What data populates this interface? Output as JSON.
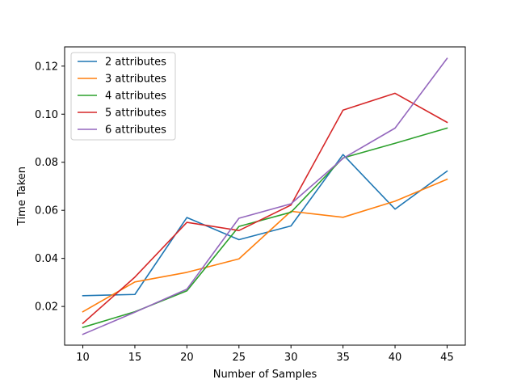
{
  "chart_data": {
    "type": "line",
    "title": "",
    "xlabel": "Number of Samples",
    "ylabel": "Time Taken",
    "x": [
      10,
      15,
      20,
      25,
      30,
      35,
      40,
      45
    ],
    "xticks": [
      10,
      15,
      20,
      25,
      30,
      35,
      40,
      45
    ],
    "yticks": [
      0.02,
      0.04,
      0.06,
      0.08,
      0.1,
      0.12
    ],
    "ytick_labels": [
      "0.02",
      "0.04",
      "0.06",
      "0.08",
      "0.10",
      "0.12"
    ],
    "xlim": [
      8.25,
      46.75
    ],
    "ylim": [
      0.0039,
      0.128
    ],
    "grid": false,
    "legend_position": "upper-left",
    "series": [
      {
        "name": "2 attributes",
        "color": "#1f77b4",
        "values": [
          0.0245,
          0.025,
          0.057,
          0.0478,
          0.0535,
          0.0832,
          0.0605,
          0.0763
        ]
      },
      {
        "name": "3 attributes",
        "color": "#ff7f0e",
        "values": [
          0.0178,
          0.0302,
          0.0342,
          0.0398,
          0.0596,
          0.0571,
          0.0638,
          0.0729
        ]
      },
      {
        "name": "4 attributes",
        "color": "#2ca02c",
        "values": [
          0.0113,
          0.0178,
          0.0265,
          0.0533,
          0.0592,
          0.0818,
          0.0879,
          0.0942
        ]
      },
      {
        "name": "5 attributes",
        "color": "#d62728",
        "values": [
          0.013,
          0.0322,
          0.055,
          0.0516,
          0.0622,
          0.1017,
          0.1087,
          0.0966
        ]
      },
      {
        "name": "6 attributes",
        "color": "#9467bd",
        "values": [
          0.0084,
          0.0176,
          0.0272,
          0.0567,
          0.0627,
          0.0816,
          0.0942,
          0.1232
        ]
      }
    ]
  }
}
